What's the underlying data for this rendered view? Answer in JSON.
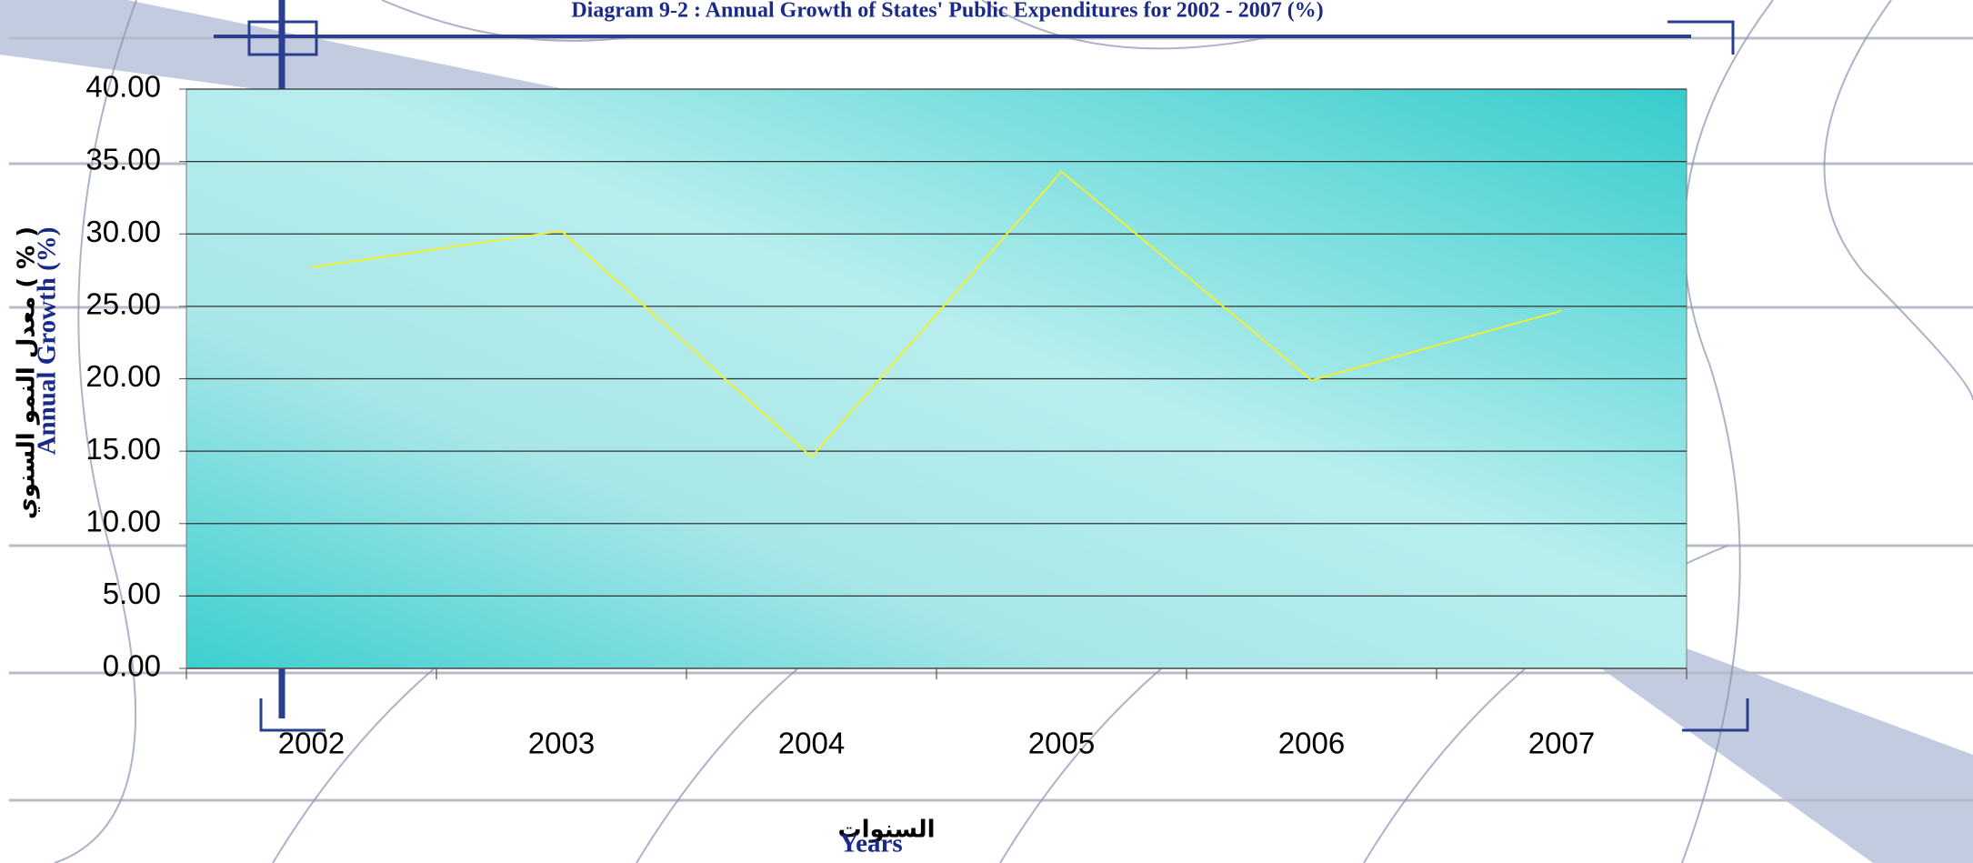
{
  "chart_data": {
    "type": "line",
    "title": "Diagram 9-2 :  Annual Growth of States' Public Expenditures for 2002 - 2007 (%)",
    "y_label": "Annual Growth (%)",
    "y_label_ar": "معدل النمو السنوي ( % )",
    "x_label": "Years",
    "x_label_ar": "السنوات",
    "categories": [
      "2002",
      "2003",
      "2004",
      "2005",
      "2006",
      "2007"
    ],
    "values": [
      27.7,
      30.2,
      14.6,
      34.3,
      19.9,
      24.7
    ],
    "color": "#f0f030",
    "ylim": [
      0,
      40
    ],
    "yticks": [
      {
        "value": 0,
        "label": "0.00"
      },
      {
        "value": 5,
        "label": "5.00"
      },
      {
        "value": 10,
        "label": "10.00"
      },
      {
        "value": 15,
        "label": "15.00"
      },
      {
        "value": 20,
        "label": "20.00"
      },
      {
        "value": 25,
        "label": "25.00"
      },
      {
        "value": 30,
        "label": "30.00"
      },
      {
        "value": 35,
        "label": "35.00"
      },
      {
        "value": 40,
        "label": "40.00"
      }
    ],
    "grid": true
  }
}
